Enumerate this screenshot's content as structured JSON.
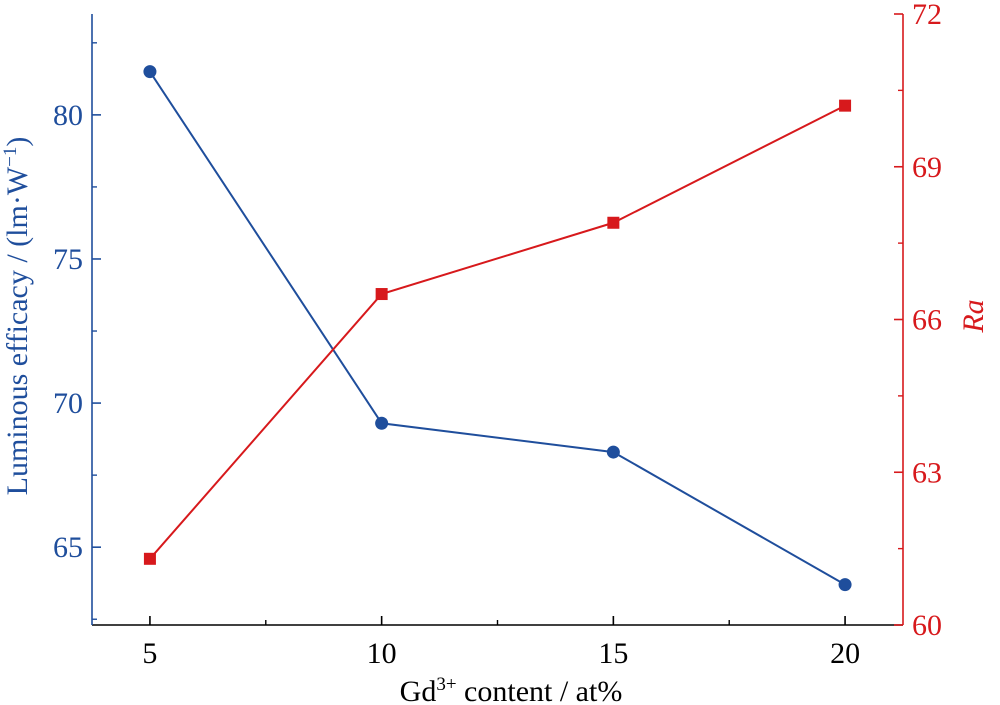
{
  "chart_data": {
    "type": "line",
    "title": "",
    "xlabel": {
      "base": "Gd",
      "sup": "3+",
      "rest": " content / at%"
    },
    "x": [
      5,
      10,
      15,
      20
    ],
    "x_ticks": [
      "5",
      "10",
      "15",
      "20"
    ],
    "xlim": [
      3.75,
      21.25
    ],
    "y_left": {
      "label": "Luminous efficacy / (lm·W",
      "label_sup": "−1",
      "label_end": ")",
      "ylim": [
        62.3,
        83.5
      ],
      "ticks": [
        "65",
        "70",
        "75",
        "80"
      ],
      "color": "#1f4e9c"
    },
    "y_right": {
      "label": "Ra",
      "ylim": [
        60,
        72
      ],
      "ticks": [
        "60",
        "63",
        "66",
        "69",
        "72"
      ],
      "color": "#d7191c"
    },
    "series": [
      {
        "axis": "left",
        "marker": "circle",
        "values": [
          81.5,
          69.3,
          68.3,
          63.7
        ]
      },
      {
        "axis": "right",
        "marker": "square",
        "values": [
          61.3,
          66.5,
          67.9,
          70.2
        ]
      }
    ],
    "grid": false,
    "legend": "none"
  }
}
